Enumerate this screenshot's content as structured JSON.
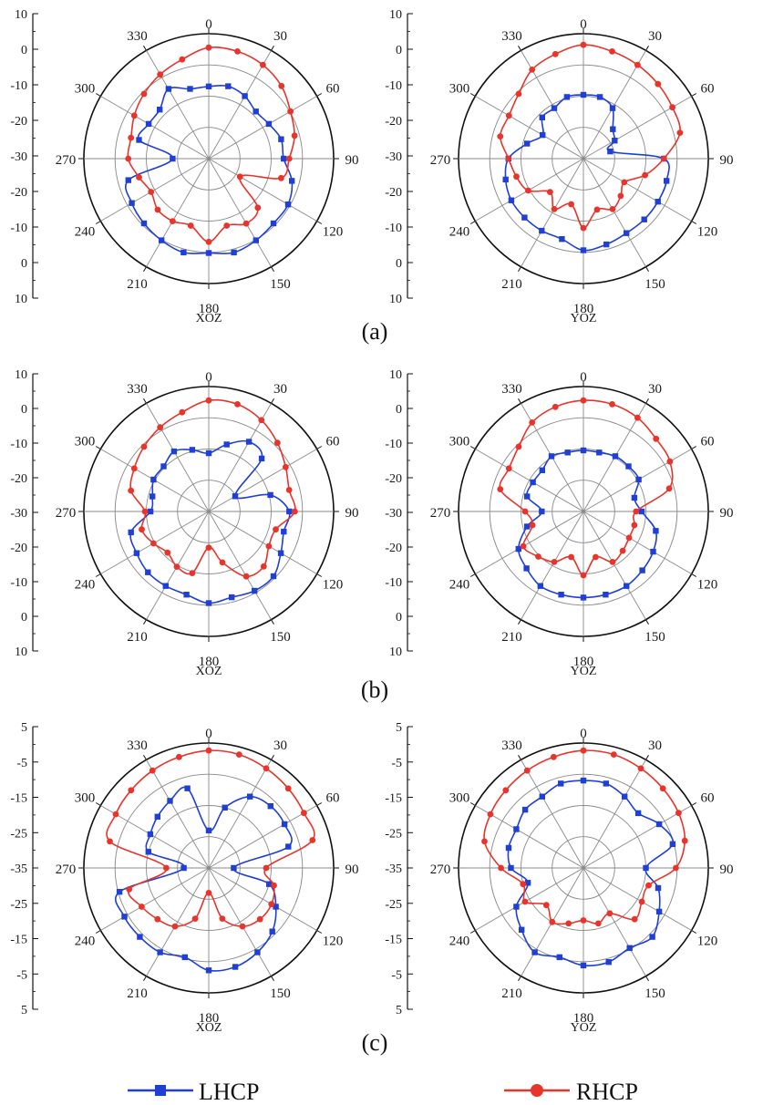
{
  "colors": {
    "lhcp": "#1f3fd6",
    "rhcp": "#e8342b",
    "grid": "#8a8a8a",
    "axis": "#111111"
  },
  "panel_labels": [
    "(a)",
    "(b)",
    "(c)"
  ],
  "legend": {
    "lhcp": "LHCP",
    "rhcp": "RHCP"
  },
  "chart_data": [
    {
      "type": "polar",
      "title": "",
      "plane_label": "XOZ",
      "panel": "(a)",
      "angle_labels": [
        "0",
        "30",
        "60",
        "90",
        "120",
        "150",
        "180",
        "210",
        "240",
        "270",
        "300",
        "330"
      ],
      "r_ticks": [
        "10",
        "0",
        "-10",
        "-20",
        "-30",
        "-20",
        "-10",
        "0",
        "10"
      ],
      "rlim": [
        -35,
        10
      ],
      "series": [
        {
          "name": "LHCP",
          "color": "lhcp",
          "angles": [
            0,
            15,
            30,
            45,
            60,
            75,
            90,
            105,
            120,
            135,
            150,
            165,
            180,
            195,
            210,
            225,
            240,
            255,
            270,
            285,
            300,
            315,
            330,
            345
          ],
          "values": [
            -9,
            -8,
            -9,
            -11,
            -10,
            -8,
            -8,
            -4,
            -2,
            -2,
            -1,
            0,
            -1,
            0,
            -1,
            -2,
            -3,
            -5,
            -22,
            -9,
            -10,
            -10,
            -6,
            -9
          ]
        },
        {
          "name": "RHCP",
          "color": "rhcp",
          "angles": [
            0,
            15,
            30,
            45,
            60,
            75,
            90,
            105,
            120,
            135,
            150,
            165,
            180,
            195,
            210,
            225,
            240,
            255,
            270,
            285,
            300,
            315,
            330,
            345
          ],
          "values": [
            5,
            5,
            4,
            2,
            -1,
            -3,
            -6,
            -8,
            -22,
            -10,
            -8,
            -10,
            -5,
            -10,
            -9,
            -9,
            -11,
            -9,
            -6,
            -6,
            -4,
            -2,
            0,
            2
          ]
        }
      ]
    },
    {
      "type": "polar",
      "title": "",
      "plane_label": "YOZ",
      "panel": "(a)",
      "angle_labels": [
        "0",
        "30",
        "60",
        "90",
        "120",
        "150",
        "180",
        "210",
        "240",
        "270",
        "300",
        "330"
      ],
      "r_ticks": [
        "10",
        "0",
        "-10",
        "-20",
        "-30",
        "-20",
        "-10",
        "0",
        "10"
      ],
      "rlim": [
        -35,
        10
      ],
      "series": [
        {
          "name": "LHCP",
          "color": "lhcp",
          "angles": [
            0,
            15,
            30,
            45,
            60,
            75,
            90,
            105,
            120,
            135,
            150,
            165,
            180,
            195,
            210,
            225,
            240,
            255,
            270,
            285,
            300,
            315,
            330,
            345
          ],
          "values": [
            -12,
            -12,
            -14,
            -20,
            -22,
            -25,
            -6,
            -4,
            -4,
            -4,
            -4,
            -3,
            -2,
            -5,
            -5,
            -5,
            -5,
            -6,
            -8,
            -14,
            -18,
            -14,
            -14,
            -12
          ]
        },
        {
          "name": "RHCP",
          "color": "rhcp",
          "angles": [
            0,
            15,
            30,
            45,
            60,
            75,
            90,
            105,
            120,
            135,
            150,
            165,
            180,
            195,
            210,
            225,
            240,
            255,
            270,
            285,
            300,
            315,
            330,
            345
          ],
          "values": [
            6,
            5,
            4,
            3,
            2,
            1,
            -6,
            -12,
            -18,
            -16,
            -14,
            -16,
            -10,
            -18,
            -14,
            -18,
            -12,
            -10,
            -8,
            -4,
            -4,
            -2,
            2,
            4
          ]
        }
      ]
    },
    {
      "type": "polar",
      "title": "",
      "plane_label": "XOZ",
      "panel": "(b)",
      "angle_labels": [
        "0",
        "30",
        "60",
        "90",
        "120",
        "150",
        "180",
        "210",
        "240",
        "270",
        "300",
        "330"
      ],
      "r_ticks": [
        "10",
        "0",
        "-10",
        "-20",
        "-30",
        "-20",
        "-10",
        "0",
        "10"
      ],
      "rlim": [
        -35,
        10
      ],
      "series": [
        {
          "name": "LHCP",
          "color": "lhcp",
          "angles": [
            0,
            15,
            30,
            45,
            60,
            75,
            90,
            105,
            120,
            135,
            150,
            165,
            180,
            195,
            210,
            225,
            240,
            255,
            270,
            285,
            300,
            315,
            330,
            345
          ],
          "values": [
            -14,
            -10,
            -6,
            -8,
            -24,
            -12,
            -6,
            -7,
            -5,
            -2,
            -2,
            -3,
            -2,
            -4,
            -4,
            -4,
            -5,
            -6,
            -14,
            -14,
            -12,
            -12,
            -10,
            -12
          ]
        },
        {
          "name": "RHCP",
          "color": "rhcp",
          "angles": [
            0,
            15,
            30,
            45,
            60,
            75,
            90,
            105,
            120,
            135,
            150,
            165,
            180,
            195,
            210,
            225,
            240,
            255,
            270,
            285,
            300,
            315,
            330,
            345
          ],
          "values": [
            5,
            5,
            3,
            0,
            -3,
            -5,
            -4,
            -10,
            -10,
            -7,
            -8,
            -16,
            -22,
            -12,
            -12,
            -14,
            -12,
            -10,
            -12,
            -6,
            -4,
            -2,
            0,
            2
          ]
        }
      ]
    },
    {
      "type": "polar",
      "title": "",
      "plane_label": "YOZ",
      "panel": "(b)",
      "angle_labels": [
        "0",
        "30",
        "60",
        "90",
        "120",
        "150",
        "180",
        "210",
        "240",
        "270",
        "300",
        "330"
      ],
      "r_ticks": [
        "10",
        "0",
        "-10",
        "-20",
        "-30",
        "-20",
        "-10",
        "0",
        "10"
      ],
      "rlim": [
        -35,
        10
      ],
      "series": [
        {
          "name": "LHCP",
          "color": "lhcp",
          "angles": [
            0,
            15,
            30,
            45,
            60,
            75,
            90,
            105,
            120,
            135,
            150,
            165,
            180,
            195,
            210,
            225,
            240,
            255,
            270,
            285,
            300,
            315,
            330,
            345
          ],
          "values": [
            -13,
            -13,
            -12,
            -12,
            -12,
            -16,
            -14,
            -8,
            -6,
            -5,
            -4,
            -4,
            -4,
            -4,
            -4,
            -6,
            -8,
            -14,
            -20,
            -14,
            -14,
            -14,
            -12,
            -13
          ]
        },
        {
          "name": "RHCP",
          "color": "rhcp",
          "angles": [
            0,
            15,
            30,
            45,
            60,
            75,
            90,
            105,
            120,
            135,
            150,
            165,
            180,
            195,
            210,
            225,
            240,
            255,
            270,
            285,
            300,
            315,
            330,
            345
          ],
          "values": [
            5,
            5,
            4,
            2,
            1,
            -3,
            -16,
            -16,
            -16,
            -15,
            -14,
            -18,
            -12,
            -18,
            -14,
            -12,
            -10,
            -16,
            -14,
            -4,
            -4,
            -2,
            2,
            4
          ]
        }
      ]
    },
    {
      "type": "polar",
      "title": "",
      "plane_label": "XOZ",
      "panel": "(c)",
      "angle_labels": [
        "0",
        "30",
        "60",
        "90",
        "120",
        "150",
        "180",
        "210",
        "240",
        "270",
        "300",
        "330"
      ],
      "r_ticks": [
        "5",
        "-5",
        "-15",
        "-25",
        "-35",
        "-25",
        "-15",
        "-5",
        "5"
      ],
      "rlim": [
        -45,
        5
      ],
      "series": [
        {
          "name": "LHCP",
          "color": "lhcp",
          "angles": [
            0,
            15,
            30,
            45,
            60,
            75,
            90,
            105,
            120,
            135,
            150,
            165,
            180,
            195,
            210,
            225,
            240,
            255,
            270,
            285,
            300,
            315,
            330,
            345
          ],
          "values": [
            -30,
            -20,
            -12,
            -10,
            -10,
            -12,
            -35,
            -20,
            -14,
            -9,
            -6,
            -4,
            -4,
            -8,
            -6,
            -6,
            -6,
            -8,
            -35,
            -20,
            -18,
            -16,
            -14,
            -12
          ]
        },
        {
          "name": "RHCP",
          "color": "rhcp",
          "angles": [
            0,
            15,
            30,
            45,
            60,
            75,
            90,
            105,
            120,
            135,
            150,
            165,
            180,
            195,
            210,
            225,
            240,
            255,
            270,
            285,
            300,
            315,
            330,
            345
          ],
          "values": [
            2,
            2,
            1,
            0,
            -1,
            -2,
            -22,
            -18,
            -16,
            -16,
            -18,
            -24,
            -35,
            -24,
            -18,
            -16,
            -14,
            -12,
            -28,
            -4,
            -2,
            -1,
            0,
            1
          ]
        }
      ]
    },
    {
      "type": "polar",
      "title": "",
      "plane_label": "YOZ",
      "panel": "(c)",
      "angle_labels": [
        "0",
        "30",
        "60",
        "90",
        "120",
        "150",
        "180",
        "210",
        "240",
        "270",
        "300",
        "330"
      ],
      "r_ticks": [
        "5",
        "-5",
        "-15",
        "-25",
        "-35",
        "-25",
        "-15",
        "-5",
        "5"
      ],
      "rlim": [
        -45,
        5
      ],
      "series": [
        {
          "name": "LHCP",
          "color": "lhcp",
          "angles": [
            0,
            15,
            30,
            45,
            60,
            75,
            90,
            105,
            120,
            135,
            150,
            165,
            180,
            195,
            210,
            225,
            240,
            255,
            270,
            285,
            300,
            315,
            330,
            345
          ],
          "values": [
            -10,
            -10,
            -12,
            -14,
            -10,
            -8,
            -20,
            -14,
            -10,
            -6,
            -8,
            -6,
            -6,
            -8,
            -6,
            -10,
            -14,
            -22,
            -16,
            -14,
            -14,
            -12,
            -12,
            -10
          ]
        },
        {
          "name": "RHCP",
          "color": "rhcp",
          "angles": [
            0,
            15,
            30,
            45,
            60,
            75,
            90,
            105,
            120,
            135,
            150,
            165,
            180,
            195,
            210,
            225,
            240,
            255,
            270,
            285,
            300,
            315,
            330,
            345
          ],
          "values": [
            2,
            2,
            1,
            0,
            -1,
            -3,
            -8,
            -18,
            -18,
            -16,
            -24,
            -22,
            -24,
            -22,
            -20,
            -24,
            -18,
            -20,
            -12,
            -4,
            -2,
            -1,
            0,
            1
          ]
        }
      ]
    }
  ]
}
